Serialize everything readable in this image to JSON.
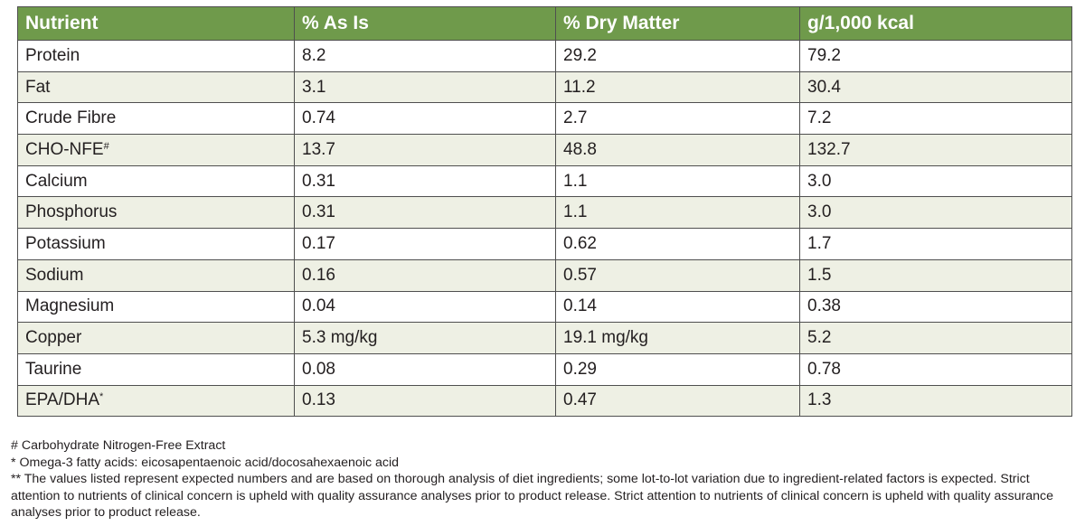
{
  "table": {
    "headers": [
      "Nutrient",
      "% As Is",
      "% Dry Matter",
      "g/1,000 kcal"
    ],
    "rows": [
      {
        "name": "Protein",
        "sup": "",
        "as_is": " 8.2",
        "dry": "29.2",
        "kcal": "79.2"
      },
      {
        "name": "Fat",
        "sup": "",
        "as_is": "3.1",
        "dry": "11.2",
        "kcal": "30.4"
      },
      {
        "name": "Crude Fibre",
        "sup": "",
        "as_is": "0.74",
        "dry": "2.7",
        "kcal": "7.2"
      },
      {
        "name": "CHO-NFE",
        "sup": "#",
        "as_is": "13.7",
        "dry": "48.8",
        "kcal": "132.7"
      },
      {
        "name": "Calcium",
        "sup": "",
        "as_is": "0.31",
        "dry": "1.1",
        "kcal": "3.0"
      },
      {
        "name": "Phosphorus",
        "sup": "",
        "as_is": "0.31",
        "dry": "1.1",
        "kcal": "3.0"
      },
      {
        "name": "Potassium",
        "sup": "",
        "as_is": "0.17",
        "dry": "0.62",
        "kcal": "1.7"
      },
      {
        "name": "Sodium",
        "sup": "",
        "as_is": "0.16",
        "dry": "0.57",
        "kcal": "1.5"
      },
      {
        "name": "Magnesium",
        "sup": "",
        "as_is": "0.04",
        "dry": "0.14",
        "kcal": "0.38"
      },
      {
        "name": "Copper",
        "sup": "",
        "as_is": "5.3 mg/kg",
        "dry": "19.1 mg/kg",
        "kcal": "5.2"
      },
      {
        "name": "Taurine",
        "sup": "",
        "as_is": "0.08",
        "dry": "0.29",
        "kcal": "0.78"
      },
      {
        "name": "EPA/DHA",
        "sup": "*",
        "as_is": "0.13",
        "dry": "0.47",
        "kcal": "1.3"
      }
    ]
  },
  "footnotes": [
    "# Carbohydrate Nitrogen-Free Extract",
    "* Omega-3 fatty acids: eicosapentaenoic acid/docosahexaenoic acid",
    "** The values listed represent expected numbers and are based on thorough analysis of diet ingredients; some lot-to-lot variation due to ingredient-related factors is expected. Strict attention to nutrients of clinical concern is upheld with quality assurance analyses prior to product release. Strict attention to nutrients of clinical concern is upheld with quality assurance analyses prior to product release."
  ],
  "colors": {
    "header_bg": "#6f9a4b",
    "stripe_bg": "#eef0e4",
    "border": "#4f4f4f"
  }
}
